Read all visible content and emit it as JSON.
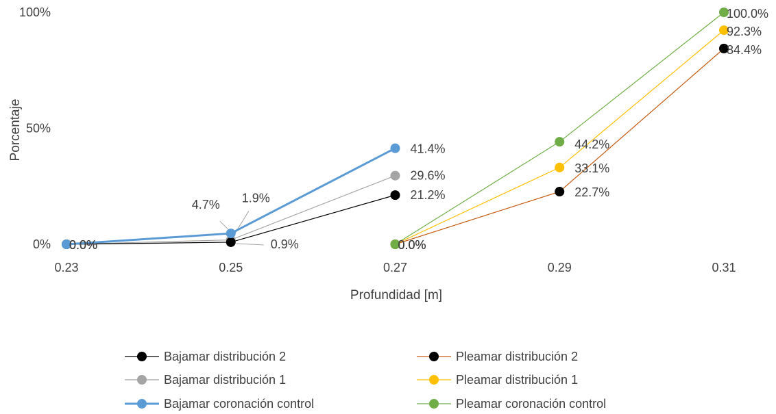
{
  "chart_data": {
    "type": "line",
    "xlabel": "Profundidad [m]",
    "ylabel": "Porcentaje",
    "x_ticks": [
      "0.23",
      "0.25",
      "0.27",
      "0.29",
      "0.31"
    ],
    "y_ticks": [
      "0%",
      "50%",
      "100%"
    ],
    "ylim": [
      0,
      100
    ],
    "xlim": [
      0.23,
      0.31
    ],
    "grid": false,
    "legend_position": "bottom",
    "series": [
      {
        "name": "Bajamar distribución 2",
        "color": "#000000",
        "line_color": "#000000",
        "points": [
          {
            "x": 0.23,
            "y": 0.0
          },
          {
            "x": 0.25,
            "y": 0.9
          },
          {
            "x": 0.27,
            "y": 21.2
          }
        ],
        "labels": [
          "0.0%",
          "0.9%",
          "21.2%"
        ]
      },
      {
        "name": "Bajamar distribución 1",
        "color": "#a5a5a5",
        "line_color": "#a5a5a5",
        "points": [
          {
            "x": 0.23,
            "y": 0.0
          },
          {
            "x": 0.25,
            "y": 1.9
          },
          {
            "x": 0.27,
            "y": 29.6
          }
        ],
        "labels": [
          "0.0%",
          "1.9%",
          "29.6%"
        ]
      },
      {
        "name": "Bajamar coronación control",
        "color": "#5b9bd5",
        "line_color": "#5b9bd5",
        "points": [
          {
            "x": 0.23,
            "y": 0.0
          },
          {
            "x": 0.25,
            "y": 4.7
          },
          {
            "x": 0.27,
            "y": 41.4
          }
        ],
        "labels": [
          "0.0%",
          "4.7%",
          "41.4%"
        ]
      },
      {
        "name": "Pleamar distribución 2",
        "color": "#000000",
        "line_color": "#c55a11",
        "points": [
          {
            "x": 0.27,
            "y": 0.0
          },
          {
            "x": 0.29,
            "y": 22.7
          },
          {
            "x": 0.31,
            "y": 84.4
          }
        ],
        "labels": [
          "0.0%",
          "22.7%",
          "84.4%"
        ]
      },
      {
        "name": "Pleamar distribución 1",
        "color": "#ffc000",
        "line_color": "#ffc000",
        "points": [
          {
            "x": 0.27,
            "y": 0.0
          },
          {
            "x": 0.29,
            "y": 33.1
          },
          {
            "x": 0.31,
            "y": 92.3
          }
        ],
        "labels": [
          "0.0%",
          "33.1%",
          "92.3%"
        ]
      },
      {
        "name": "Pleamar coronación control",
        "color": "#70ad47",
        "line_color": "#70ad47",
        "points": [
          {
            "x": 0.27,
            "y": 0.0
          },
          {
            "x": 0.29,
            "y": 44.2
          },
          {
            "x": 0.31,
            "y": 100.0
          }
        ],
        "labels": [
          "0.0%",
          "44.2%",
          "100.0%"
        ]
      }
    ]
  }
}
